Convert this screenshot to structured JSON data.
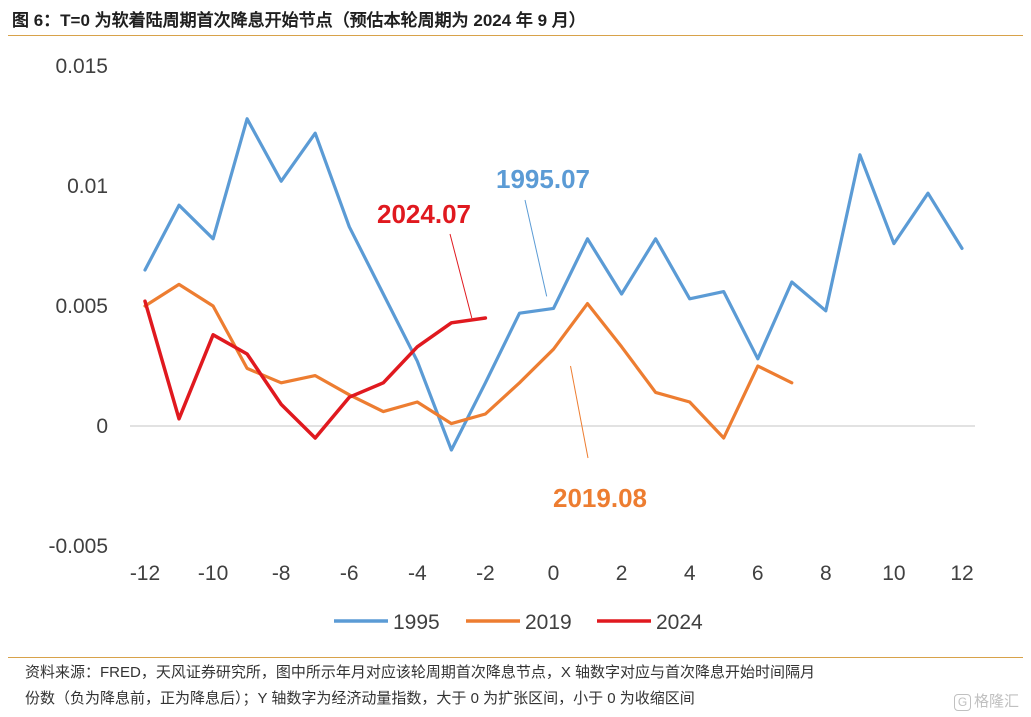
{
  "header": {
    "title": "图 6：T=0 为软着陆周期首次降息开始节点（预估本轮周期为 2024 年 9 月）"
  },
  "chart_data": {
    "type": "line",
    "title": "",
    "xlabel": "",
    "ylabel": "",
    "xlim": [
      -12,
      12
    ],
    "ylim": [
      -0.005,
      0.015
    ],
    "x_ticks": [
      -12,
      -10,
      -8,
      -6,
      -4,
      -2,
      0,
      2,
      4,
      6,
      8,
      10,
      12
    ],
    "y_ticks": [
      -0.005,
      0,
      0.005,
      0.01,
      0.015
    ],
    "y_tick_labels": [
      "-0.005",
      "0",
      "0.005",
      "0.01",
      "0.015"
    ],
    "grid": "horizontal zero line only",
    "legend_position": "bottom",
    "series": [
      {
        "name": "1995",
        "color": "#5b9bd5",
        "x": [
          -12,
          -11,
          -10,
          -9,
          -8,
          -7,
          -6,
          -5,
          -4,
          -3,
          -2,
          -1,
          0,
          1,
          2,
          3,
          4,
          5,
          6,
          7,
          8,
          9,
          10,
          11,
          12
        ],
        "y": [
          0.0065,
          0.0092,
          0.0078,
          0.0128,
          0.0102,
          0.0122,
          0.0083,
          0.0055,
          0.0027,
          -0.001,
          0.0018,
          0.0047,
          0.0049,
          0.0078,
          0.0055,
          0.0078,
          0.0053,
          0.0056,
          0.0028,
          0.006,
          0.0048,
          0.0113,
          0.0076,
          0.0097,
          0.0074
        ]
      },
      {
        "name": "2019",
        "color": "#ed7d31",
        "x": [
          -12,
          -11,
          -10,
          -9,
          -8,
          -7,
          -6,
          -5,
          -4,
          -3,
          -2,
          -1,
          0,
          1,
          2,
          3,
          4,
          5,
          6,
          7
        ],
        "y": [
          0.005,
          0.0059,
          0.005,
          0.0024,
          0.0018,
          0.0021,
          0.0013,
          0.0006,
          0.001,
          0.0001,
          0.0005,
          0.0018,
          0.0032,
          0.0051,
          0.0033,
          0.0014,
          0.001,
          -0.0005,
          0.0025,
          0.0018
        ]
      },
      {
        "name": "2024",
        "color": "#e0191f",
        "x": [
          -12,
          -11,
          -10,
          -9,
          -8,
          -7,
          -6,
          -5,
          -4,
          -3,
          -2
        ],
        "y": [
          0.0052,
          0.0003,
          0.0038,
          0.003,
          0.0009,
          -0.0005,
          0.0012,
          0.0018,
          0.0033,
          0.0043,
          0.0045
        ]
      }
    ],
    "annotations": [
      {
        "text": "1995.07",
        "color": "#5b9bd5",
        "point_x": -0.2,
        "point_y": 0.0054
      },
      {
        "text": "2024.07",
        "color": "#e0191f",
        "point_x": -2.4,
        "point_y": 0.0045
      },
      {
        "text": "2019.08",
        "color": "#ed7d31",
        "point_x": 0.5,
        "point_y": 0.0025
      }
    ]
  },
  "footer": {
    "line1": "资料来源：FRED，天风证券研究所，图中所示年月对应该轮周期首次降息节点，X 轴数字对应与首次降息开始时间隔月",
    "line2": "份数（负为降息前，正为降息后）；Y 轴数字为经济动量指数，大于 0 为扩张区间，小于 0 为收缩区间"
  },
  "watermark": {
    "icon": "G",
    "text": "格隆汇"
  }
}
